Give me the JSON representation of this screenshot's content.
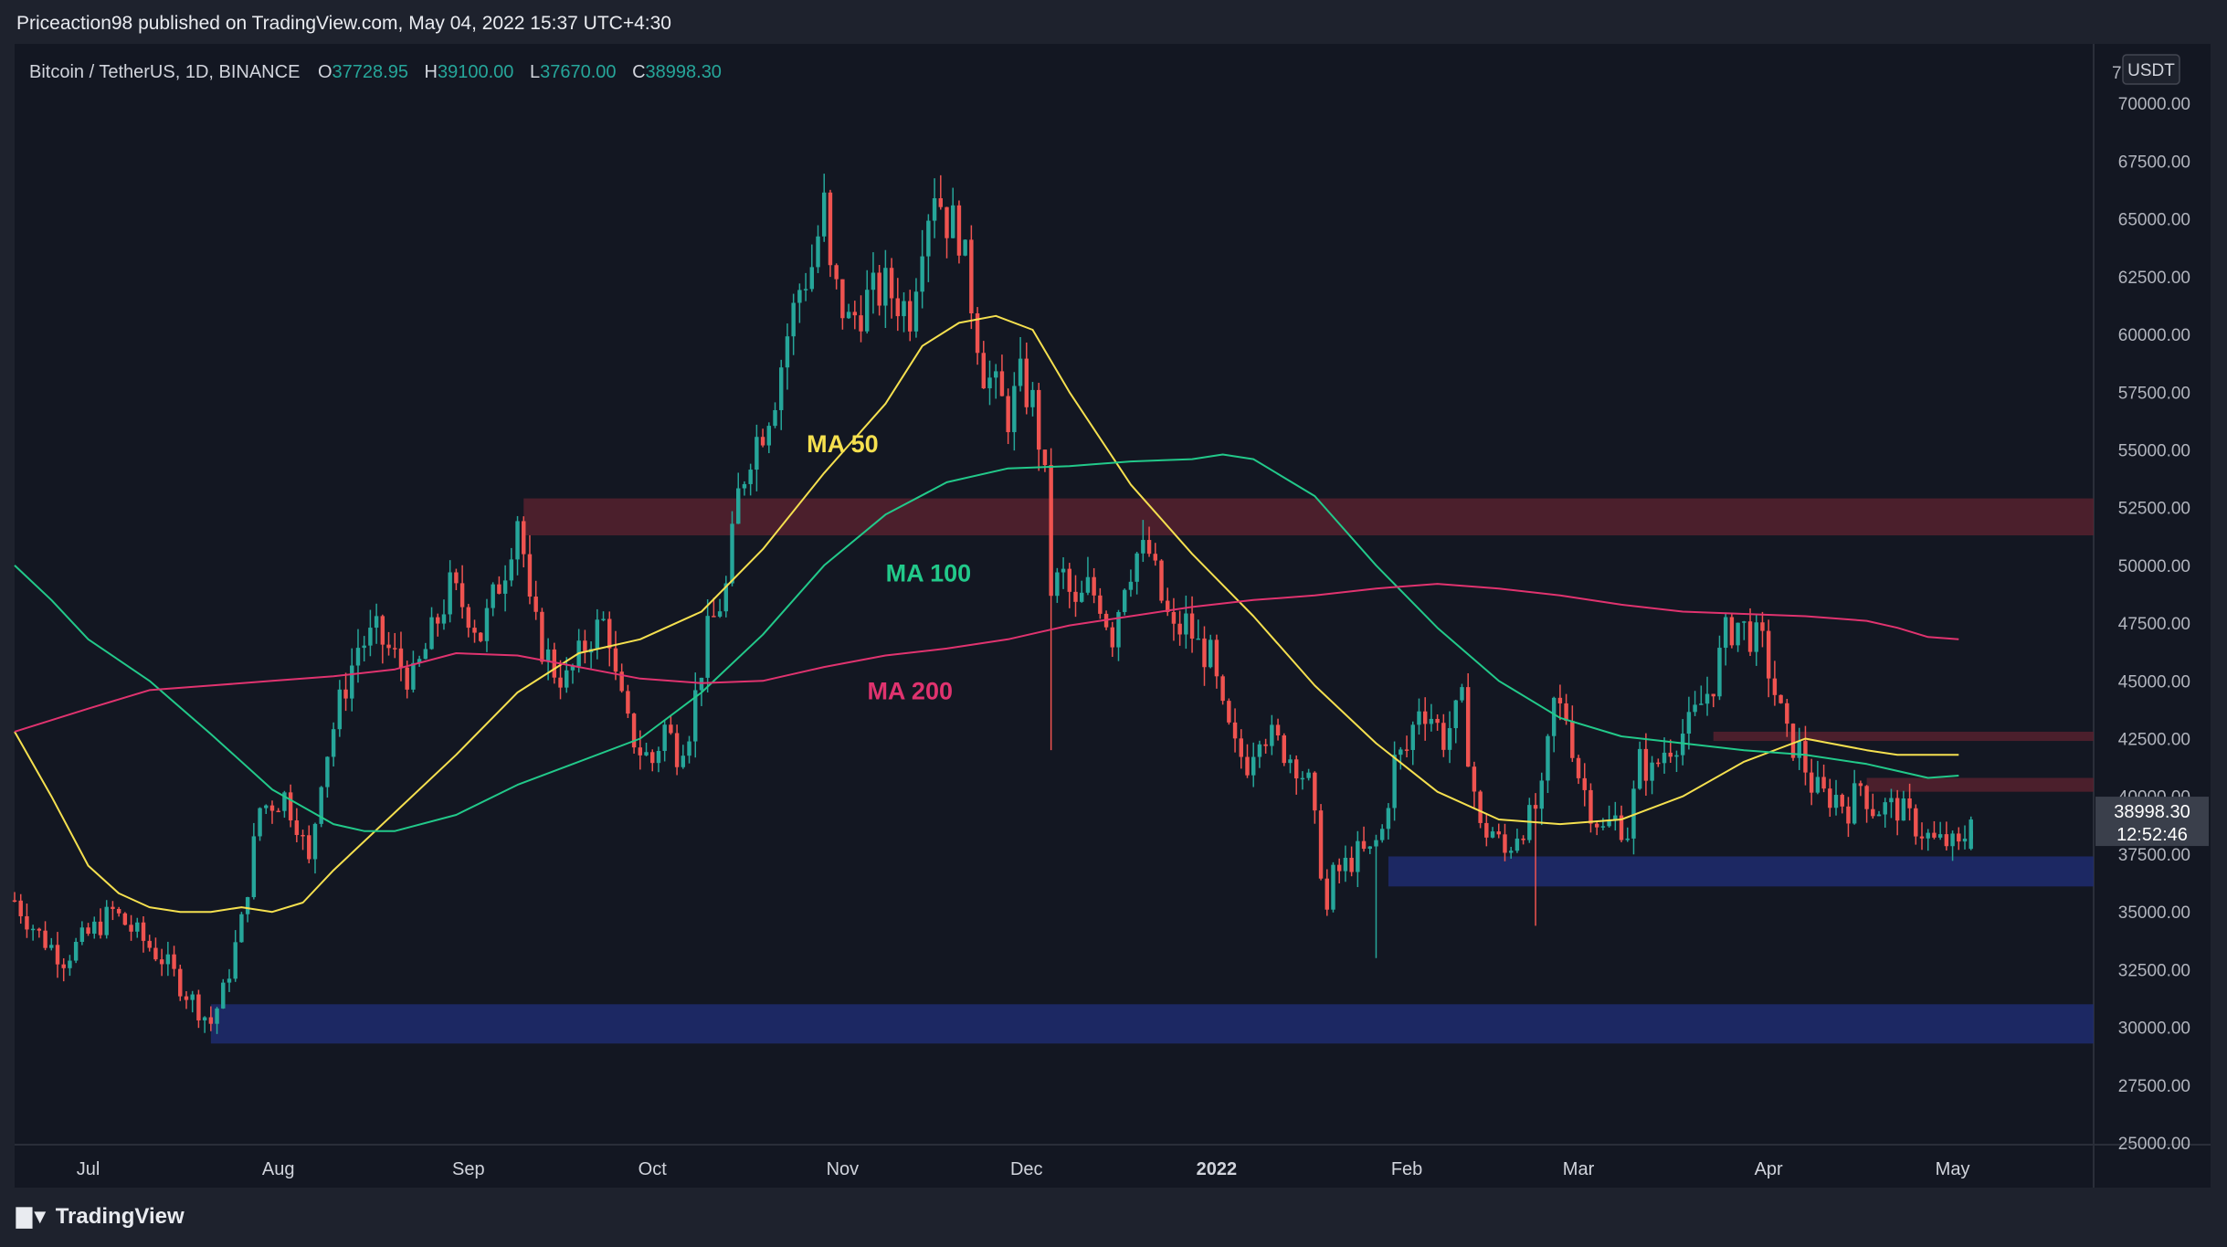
{
  "header": {
    "published_by": "Priceaction98 published on TradingView.com, May 04, 2022 15:37 UTC+4:30"
  },
  "legend": {
    "symbol": "Bitcoin / TetherUS, 1D, BINANCE",
    "open_label": "O",
    "open": "37728.95",
    "high_label": "H",
    "high": "39100.00",
    "low_label": "L",
    "low": "37670.00",
    "close_label": "C",
    "close": "38998.30"
  },
  "price_scale": {
    "currency": "USDT",
    "last_price": "38998.30",
    "countdown": "12:52:46",
    "top_clip": "7"
  },
  "footer": {
    "brand": "TradingView"
  },
  "colors": {
    "up": "#26a69a",
    "down": "#ef5350",
    "ma50": "#f5e04f",
    "ma100": "#22c98a",
    "ma200": "#e0336f",
    "resistance": "#5a2230",
    "support": "#1f2b6e",
    "background": "#131722",
    "frame": "#1e222d"
  },
  "chart_data": {
    "type": "candlestick",
    "ylim": [
      25000,
      72500
    ],
    "y_ticks": [
      "25000.00",
      "27500.00",
      "30000.00",
      "32500.00",
      "35000.00",
      "37500.00",
      "40000.00",
      "42500.00",
      "45000.00",
      "47500.00",
      "50000.00",
      "52500.00",
      "55000.00",
      "57500.00",
      "60000.00",
      "62500.00",
      "65000.00",
      "67500.00",
      "70000.00"
    ],
    "x_ticks": [
      "Jul",
      "Aug",
      "Sep",
      "Oct",
      "Nov",
      "Dec",
      "2022",
      "Feb",
      "Mar",
      "Apr",
      "May"
    ],
    "x_tick_days": [
      0,
      31,
      62,
      92,
      123,
      153,
      184,
      215,
      243,
      274,
      304
    ],
    "x_range_days": [
      -12,
      327
    ],
    "last_day": 307,
    "anchors": [
      [
        -12,
        35500
      ],
      [
        -8,
        34000
      ],
      [
        -4,
        33000
      ],
      [
        0,
        34000
      ],
      [
        4,
        35000
      ],
      [
        8,
        34000
      ],
      [
        12,
        33000
      ],
      [
        16,
        31500
      ],
      [
        19,
        30500
      ],
      [
        20,
        30200
      ],
      [
        22,
        31500
      ],
      [
        25,
        34500
      ],
      [
        28,
        39500
      ],
      [
        32,
        40000
      ],
      [
        34,
        39000
      ],
      [
        36,
        37000
      ],
      [
        38,
        41000
      ],
      [
        41,
        44000
      ],
      [
        44,
        46500
      ],
      [
        47,
        47000
      ],
      [
        50,
        46000
      ],
      [
        53,
        45000
      ],
      [
        56,
        47000
      ],
      [
        59,
        49000
      ],
      [
        62,
        48000
      ],
      [
        64,
        47000
      ],
      [
        66,
        48500
      ],
      [
        68,
        50000
      ],
      [
        70,
        52200
      ],
      [
        71,
        50500
      ],
      [
        72,
        48000
      ],
      [
        74,
        46500
      ],
      [
        76,
        45500
      ],
      [
        78,
        45000
      ],
      [
        80,
        46000
      ],
      [
        82,
        47000
      ],
      [
        84,
        47500
      ],
      [
        85,
        47000
      ],
      [
        86,
        45000
      ],
      [
        88,
        43000
      ],
      [
        90,
        42000
      ],
      [
        92,
        41500
      ],
      [
        94,
        43000
      ],
      [
        96,
        42000
      ],
      [
        98,
        43000
      ],
      [
        101,
        47000
      ],
      [
        104,
        49000
      ],
      [
        106,
        53000
      ],
      [
        108,
        55000
      ],
      [
        110,
        56000
      ],
      [
        112,
        57500
      ],
      [
        114,
        60000
      ],
      [
        116,
        62000
      ],
      [
        118,
        63000
      ],
      [
        120,
        65500
      ],
      [
        121,
        62500
      ],
      [
        124,
        60500
      ],
      [
        127,
        61500
      ],
      [
        130,
        62000
      ],
      [
        134,
        61000
      ],
      [
        136,
        64500
      ],
      [
        138,
        66500
      ],
      [
        140,
        65000
      ],
      [
        142,
        64500
      ],
      [
        144,
        61500
      ],
      [
        146,
        58500
      ],
      [
        148,
        57500
      ],
      [
        150,
        56500
      ],
      [
        152,
        58000
      ],
      [
        154,
        57000
      ],
      [
        155,
        55500
      ],
      [
        156,
        53500
      ],
      [
        157,
        49000
      ],
      [
        159,
        49500
      ],
      [
        161,
        48000
      ],
      [
        163,
        49000
      ],
      [
        165,
        48500
      ],
      [
        167,
        47000
      ],
      [
        169,
        49500
      ],
      [
        171,
        50500
      ],
      [
        173,
        50500
      ],
      [
        175,
        48500
      ],
      [
        177,
        47000
      ],
      [
        179,
        47500
      ],
      [
        181,
        46500
      ],
      [
        183,
        46000
      ],
      [
        185,
        43500
      ],
      [
        187,
        42000
      ],
      [
        189,
        41500
      ],
      [
        191,
        43000
      ],
      [
        193,
        42500
      ],
      [
        195,
        42000
      ],
      [
        197,
        41500
      ],
      [
        199,
        40500
      ],
      [
        201,
        37000
      ],
      [
        202,
        35000
      ],
      [
        203,
        36500
      ],
      [
        205,
        37000
      ],
      [
        207,
        37500
      ],
      [
        209,
        37500
      ],
      [
        211,
        38500
      ],
      [
        213,
        41500
      ],
      [
        215,
        42000
      ],
      [
        217,
        44000
      ],
      [
        219,
        43500
      ],
      [
        221,
        42500
      ],
      [
        223,
        43500
      ],
      [
        224,
        44000
      ],
      [
        225,
        42000
      ],
      [
        227,
        38500
      ],
      [
        229,
        38500
      ],
      [
        231,
        37500
      ],
      [
        233,
        38500
      ],
      [
        235,
        39000
      ],
      [
        237,
        40000
      ],
      [
        239,
        44000
      ],
      [
        241,
        43500
      ],
      [
        243,
        41000
      ],
      [
        245,
        39500
      ],
      [
        247,
        38500
      ],
      [
        249,
        39000
      ],
      [
        251,
        38500
      ],
      [
        253,
        41500
      ],
      [
        255,
        41000
      ],
      [
        257,
        42000
      ],
      [
        259,
        42500
      ],
      [
        261,
        43000
      ],
      [
        263,
        44000
      ],
      [
        265,
        45000
      ],
      [
        267,
        47000
      ],
      [
        269,
        47500
      ],
      [
        271,
        47000
      ],
      [
        273,
        46500
      ],
      [
        275,
        44500
      ],
      [
        277,
        42500
      ],
      [
        279,
        42000
      ],
      [
        281,
        40500
      ],
      [
        283,
        40000
      ],
      [
        285,
        40000
      ],
      [
        287,
        39500
      ],
      [
        289,
        40500
      ],
      [
        291,
        39500
      ],
      [
        293,
        39500
      ],
      [
        295,
        39500
      ],
      [
        297,
        39000
      ],
      [
        299,
        38500
      ],
      [
        301,
        38000
      ],
      [
        303,
        38000
      ],
      [
        305,
        37700
      ],
      [
        307,
        39000
      ]
    ],
    "moving_averages": [
      {
        "name": "MA 50",
        "color": "#f5e04f",
        "points": [
          [
            -12,
            42800
          ],
          [
            -6,
            40000
          ],
          [
            0,
            37000
          ],
          [
            5,
            35800
          ],
          [
            10,
            35200
          ],
          [
            15,
            35000
          ],
          [
            20,
            35000
          ],
          [
            25,
            35200
          ],
          [
            30,
            35000
          ],
          [
            35,
            35400
          ],
          [
            40,
            36800
          ],
          [
            50,
            39300
          ],
          [
            60,
            41800
          ],
          [
            70,
            44500
          ],
          [
            80,
            46200
          ],
          [
            90,
            46800
          ],
          [
            100,
            48000
          ],
          [
            110,
            50700
          ],
          [
            120,
            54000
          ],
          [
            130,
            57000
          ],
          [
            136,
            59500
          ],
          [
            142,
            60500
          ],
          [
            148,
            60800
          ],
          [
            154,
            60200
          ],
          [
            160,
            57500
          ],
          [
            170,
            53500
          ],
          [
            180,
            50500
          ],
          [
            190,
            47800
          ],
          [
            200,
            44800
          ],
          [
            210,
            42300
          ],
          [
            220,
            40200
          ],
          [
            230,
            39000
          ],
          [
            240,
            38800
          ],
          [
            250,
            39000
          ],
          [
            260,
            40000
          ],
          [
            270,
            41500
          ],
          [
            280,
            42500
          ],
          [
            290,
            42000
          ],
          [
            295,
            41800
          ],
          [
            300,
            41800
          ],
          [
            305,
            41800
          ]
        ]
      },
      {
        "name": "MA 100",
        "color": "#22c98a",
        "points": [
          [
            -12,
            50000
          ],
          [
            -6,
            48500
          ],
          [
            0,
            46800
          ],
          [
            10,
            45000
          ],
          [
            20,
            42700
          ],
          [
            30,
            40300
          ],
          [
            40,
            38800
          ],
          [
            45,
            38500
          ],
          [
            50,
            38500
          ],
          [
            60,
            39200
          ],
          [
            70,
            40500
          ],
          [
            80,
            41500
          ],
          [
            90,
            42500
          ],
          [
            100,
            44500
          ],
          [
            110,
            47000
          ],
          [
            120,
            50000
          ],
          [
            130,
            52200
          ],
          [
            140,
            53600
          ],
          [
            150,
            54200
          ],
          [
            160,
            54300
          ],
          [
            170,
            54500
          ],
          [
            180,
            54600
          ],
          [
            185,
            54800
          ],
          [
            190,
            54600
          ],
          [
            200,
            53000
          ],
          [
            210,
            50000
          ],
          [
            220,
            47300
          ],
          [
            230,
            45000
          ],
          [
            240,
            43400
          ],
          [
            250,
            42600
          ],
          [
            260,
            42300
          ],
          [
            270,
            42000
          ],
          [
            280,
            41800
          ],
          [
            290,
            41400
          ],
          [
            295,
            41100
          ],
          [
            300,
            40800
          ],
          [
            305,
            40900
          ]
        ]
      },
      {
        "name": "MA 200",
        "color": "#e0336f",
        "points": [
          [
            -12,
            42800
          ],
          [
            0,
            43800
          ],
          [
            10,
            44600
          ],
          [
            20,
            44800
          ],
          [
            30,
            45000
          ],
          [
            40,
            45200
          ],
          [
            50,
            45500
          ],
          [
            60,
            46200
          ],
          [
            70,
            46100
          ],
          [
            80,
            45600
          ],
          [
            90,
            45100
          ],
          [
            100,
            44900
          ],
          [
            110,
            45000
          ],
          [
            120,
            45600
          ],
          [
            130,
            46100
          ],
          [
            140,
            46400
          ],
          [
            150,
            46800
          ],
          [
            160,
            47400
          ],
          [
            170,
            47800
          ],
          [
            180,
            48200
          ],
          [
            190,
            48500
          ],
          [
            200,
            48700
          ],
          [
            210,
            49000
          ],
          [
            220,
            49200
          ],
          [
            230,
            49000
          ],
          [
            240,
            48700
          ],
          [
            250,
            48300
          ],
          [
            260,
            48000
          ],
          [
            270,
            47900
          ],
          [
            280,
            47800
          ],
          [
            290,
            47600
          ],
          [
            295,
            47300
          ],
          [
            300,
            46900
          ],
          [
            305,
            46800
          ]
        ]
      }
    ],
    "zones": [
      {
        "type": "resistance",
        "from_day": 71,
        "to_day": 327,
        "low": 51300,
        "high": 52900
      },
      {
        "type": "resistance",
        "from_day": 265,
        "to_day": 327,
        "low": 42400,
        "high": 42800
      },
      {
        "type": "resistance",
        "from_day": 290,
        "to_day": 327,
        "low": 40200,
        "high": 40800
      },
      {
        "type": "support",
        "from_day": 212,
        "to_day": 327,
        "low": 36100,
        "high": 37400
      },
      {
        "type": "support",
        "from_day": 20,
        "to_day": 327,
        "low": 29300,
        "high": 31000
      }
    ],
    "annotations": [
      {
        "text": "MA 50",
        "day": 123,
        "price": 54900,
        "color": "#f5e04f"
      },
      {
        "text": "MA 100",
        "day": 137,
        "price": 49300,
        "color": "#22c98a"
      },
      {
        "text": "MA 200",
        "day": 134,
        "price": 44200,
        "color": "#e0336f"
      }
    ],
    "spikes": [
      {
        "day": 157,
        "low": 42000
      },
      {
        "day": 236,
        "low": 34400
      },
      {
        "day": 210,
        "low": 33000
      }
    ]
  }
}
